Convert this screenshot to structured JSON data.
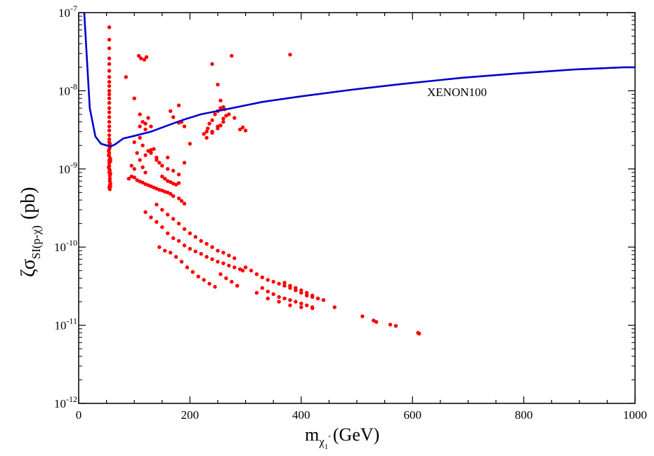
{
  "chart_data": {
    "type": "scatter",
    "xlabel": {
      "main": "m",
      "sub": "χ",
      "subsub": "1",
      "supsub": "°",
      "unit": "(GeV)"
    },
    "ylabel": {
      "prefix": "ζσ",
      "sub": "SI(p-χ)",
      "unit": "(pb)"
    },
    "x_ticks": [
      "0",
      "200",
      "400",
      "600",
      "800",
      "1000"
    ],
    "y_ticks": [
      {
        "base": "10",
        "exp": "-12"
      },
      {
        "base": "10",
        "exp": "-11"
      },
      {
        "base": "10",
        "exp": "-10"
      },
      {
        "base": "10",
        "exp": "-9"
      },
      {
        "base": "10",
        "exp": "-8"
      },
      {
        "base": "10",
        "exp": "-7"
      }
    ],
    "xlim": [
      0,
      1000
    ],
    "ylim": [
      1e-12,
      1e-07
    ],
    "y_scale": "log",
    "grid": false,
    "annotations": [
      {
        "text": "XENON100"
      }
    ],
    "colors": {
      "limit_line": "#0000cc",
      "points": "#ff0000"
    },
    "limit_curve": {
      "x": [
        10,
        20,
        30,
        40,
        50,
        58,
        65,
        80,
        100,
        130,
        160,
        190,
        220,
        260,
        330,
        400,
        490,
        580,
        690,
        790,
        890,
        980,
        1000
      ],
      "y": [
        1e-07,
        6e-09,
        2.6e-09,
        2.1e-09,
        2e-09,
        1.95e-09,
        2.05e-09,
        2.45e-09,
        2.65e-09,
        3e-09,
        3.6e-09,
        4.3e-09,
        5e-09,
        5.7e-09,
        7.2e-09,
        8.5e-09,
        1.03e-08,
        1.22e-08,
        1.47e-08,
        1.67e-08,
        1.87e-08,
        2e-08,
        2e-08
      ]
    },
    "scatter": {
      "x": [
        55,
        55,
        55,
        55,
        55,
        55,
        55,
        55,
        55,
        55,
        55,
        55,
        55,
        55,
        55,
        55,
        55,
        55,
        55,
        55,
        55,
        55,
        55,
        55,
        55,
        55,
        55,
        55,
        55,
        55,
        55,
        56,
        56,
        56,
        57,
        57,
        54,
        54,
        56,
        56,
        57,
        57,
        54,
        56,
        57,
        56,
        55,
        56,
        90,
        95,
        100,
        105,
        110,
        115,
        120,
        100,
        110,
        115,
        120,
        125,
        130,
        135,
        140,
        145,
        150,
        155,
        160,
        165,
        170,
        175,
        180,
        110,
        120,
        130,
        140,
        150,
        160,
        170,
        180,
        95,
        100,
        105,
        110,
        115,
        120,
        125,
        130,
        135,
        140,
        145,
        150,
        155,
        160,
        165,
        170,
        180,
        185,
        190,
        120,
        130,
        140,
        150,
        160,
        170,
        180,
        190,
        200,
        210,
        220,
        230,
        240,
        250,
        260,
        270,
        280,
        290,
        140,
        150,
        160,
        170,
        180,
        190,
        200,
        210,
        220,
        230,
        240,
        250,
        260,
        270,
        280,
        145,
        155,
        165,
        175,
        185,
        195,
        205,
        215,
        225,
        235,
        245,
        255,
        265,
        275,
        285,
        295,
        300,
        310,
        320,
        330,
        340,
        350,
        360,
        370,
        380,
        390,
        400,
        410,
        420,
        430,
        330,
        340,
        350,
        360,
        370,
        380,
        390,
        400,
        410,
        420,
        370,
        380,
        390,
        400,
        410,
        420,
        430,
        440,
        320,
        340,
        360,
        380,
        400,
        420,
        460,
        510,
        530,
        535,
        560,
        570,
        610,
        612,
        85,
        100,
        110,
        115,
        120,
        125,
        130,
        165,
        180,
        185,
        190,
        230,
        232,
        235,
        240,
        245,
        250,
        255,
        260,
        262,
        270,
        225,
        230,
        240,
        250,
        260,
        280,
        290,
        295,
        300,
        240,
        250,
        255,
        260,
        265,
        170,
        180,
        108,
        112,
        118,
        122,
        240,
        275,
        380,
        250,
        255,
        160,
        190,
        200
      ],
      "y": [
        6.5e-08,
        4.5e-08,
        3.5e-08,
        2.6e-08,
        2.2e-08,
        1.8e-08,
        1.5e-08,
        1.3e-08,
        1.15e-08,
        1e-08,
        9e-09,
        8e-09,
        7e-09,
        6e-09,
        5.3e-09,
        4.6e-09,
        4e-09,
        3.5e-09,
        3.1e-09,
        2.7e-09,
        2.4e-09,
        2.2e-09,
        2e-09,
        1.8e-09,
        1.6e-09,
        1.45e-09,
        1.3e-09,
        1.2e-09,
        1.1e-09,
        1e-09,
        9e-10,
        8.2e-10,
        7.5e-10,
        7e-10,
        6.5e-10,
        6e-10,
        1.5e-09,
        1.7e-09,
        1.9e-09,
        2.1e-09,
        1.35e-09,
        1.25e-09,
        1.05e-09,
        9.5e-10,
        8.7e-10,
        6.2e-10,
        5.8e-10,
        5.5e-10,
        7.5e-10,
        1.1e-09,
        1e-09,
        1.6e-09,
        1.3e-09,
        1.05e-09,
        9e-10,
        2.2e-09,
        2.5e-09,
        2e-09,
        1.5e-09,
        1.7e-09,
        1.6e-09,
        1.8e-09,
        1.4e-09,
        1.2e-09,
        8e-10,
        7.5e-10,
        7e-10,
        6.8e-10,
        6.5e-10,
        6.3e-10,
        6.6e-10,
        3.5e-09,
        3.2e-09,
        1.75e-09,
        1.3e-09,
        1.1e-09,
        1e-09,
        9.5e-10,
        8.5e-10,
        8e-10,
        7.8e-10,
        7.2e-10,
        6.9e-10,
        6.7e-10,
        6.4e-10,
        6.2e-10,
        6e-10,
        5.8e-10,
        5.6e-10,
        5.4e-10,
        5.3e-10,
        5.1e-10,
        5e-10,
        4.8e-10,
        4.5e-10,
        4.2e-10,
        3.9e-10,
        3.6e-10,
        2.8e-10,
        2.4e-10,
        2.1e-10,
        1.8e-10,
        1.5e-10,
        1.3e-10,
        1.2e-10,
        1.05e-10,
        9.5e-11,
        8.8e-11,
        8.2e-11,
        7.5e-11,
        7e-11,
        6.5e-11,
        6.2e-11,
        5.8e-11,
        5.5e-11,
        5.2e-11,
        3.5e-10,
        3e-10,
        2.6e-10,
        2.3e-10,
        2e-10,
        1.7e-10,
        1.5e-10,
        1.35e-10,
        1.2e-10,
        1.1e-10,
        1e-10,
        9e-11,
        8.5e-11,
        7.8e-11,
        7.2e-11,
        1e-10,
        9e-11,
        8.5e-11,
        7.5e-11,
        6.5e-11,
        5.5e-11,
        4.8e-11,
        4.2e-11,
        3.8e-11,
        3.4e-11,
        3.1e-11,
        4.5e-11,
        4e-11,
        3.6e-11,
        3.2e-11,
        5e-11,
        5.5e-11,
        5e-11,
        4.5e-11,
        4.1e-11,
        3.8e-11,
        3.6e-11,
        3.4e-11,
        3.2e-11,
        3e-11,
        2.8e-11,
        2.6e-11,
        2.4e-11,
        2.3e-11,
        2.2e-11,
        3e-11,
        2.7e-11,
        2.5e-11,
        2.3e-11,
        2.2e-11,
        2.1e-11,
        2e-11,
        1.9e-11,
        1.8e-11,
        1.7e-11,
        3.5e-11,
        3.2e-11,
        3e-11,
        2.8e-11,
        2.6e-11,
        2.4e-11,
        2.2e-11,
        2.1e-11,
        2.6e-11,
        2.2e-11,
        2e-11,
        1.8e-11,
        1.7e-11,
        1.65e-11,
        1.7e-11,
        1.3e-11,
        1.15e-11,
        1.1e-11,
        1.02e-11,
        9.8e-12,
        8e-12,
        7.8e-12,
        1.5e-08,
        8e-09,
        5e-09,
        4e-09,
        3.8e-09,
        4.5e-09,
        3.5e-09,
        5.5e-09,
        6.5e-09,
        4e-09,
        3.5e-09,
        3e-09,
        3.3e-09,
        3.8e-09,
        4.2e-09,
        5e-09,
        5.5e-09,
        6e-09,
        6.2e-09,
        5.8e-09,
        5e-09,
        2.8e-09,
        2.5e-09,
        3e-09,
        3.5e-09,
        4e-09,
        4.5e-09,
        3.2e-09,
        3.4e-09,
        3.1e-09,
        2.9e-09,
        3.3e-09,
        3.6e-09,
        4.4e-09,
        4.8e-09,
        4.6e-09,
        3.9e-09,
        2.8e-08,
        2.6e-08,
        2.5e-08,
        2.7e-08,
        2.2e-08,
        2.8e-08,
        2.9e-08,
        1.2e-08,
        7.5e-09,
        1.4e-09,
        1.2e-09,
        2.1e-09
      ]
    }
  }
}
